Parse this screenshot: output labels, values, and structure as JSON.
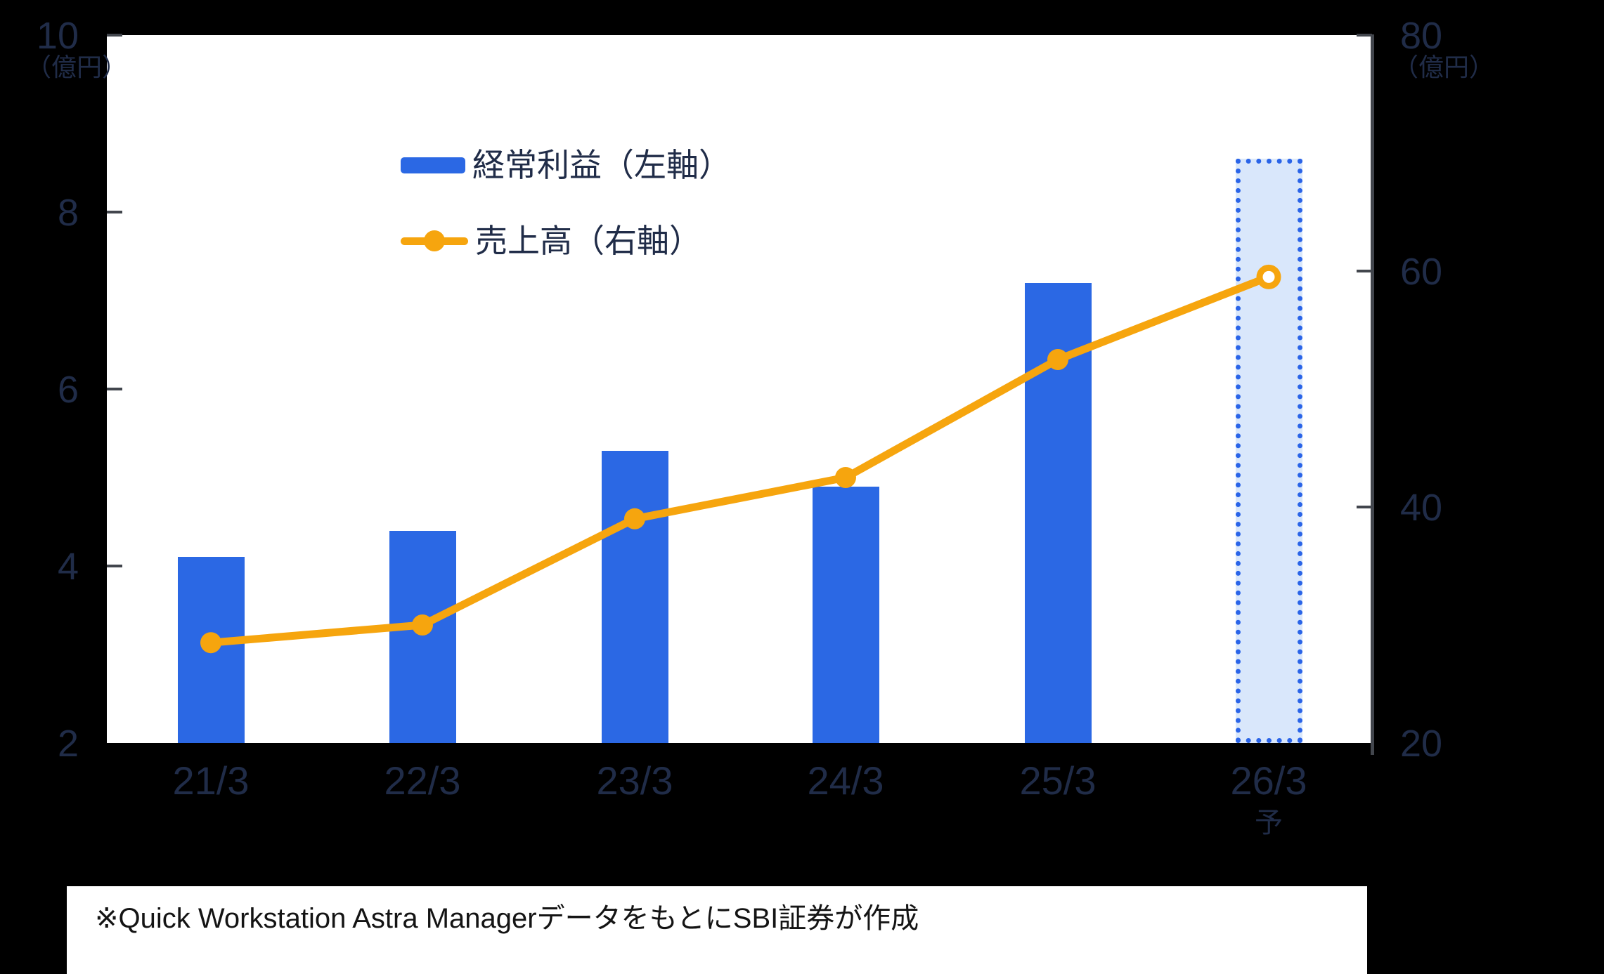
{
  "colors": {
    "page_background": "#000000",
    "plot_background": "#ffffff",
    "bar_blue": "#2b68e4",
    "forecast_fill": "#d9e7fb",
    "forecast_border": "#2a64e8",
    "line_orange": "#f6a50e",
    "axis_text": "#202c48",
    "spine": "#42464d",
    "note_text": "#141414"
  },
  "chart_data": {
    "type": "combo-bar-line-dual-axis",
    "categories": [
      "21/3",
      "22/3",
      "23/3",
      "24/3",
      "25/3",
      "26/3"
    ],
    "forecast_index": 5,
    "forecast_label": "予",
    "series": [
      {
        "name": "経常利益（左軸）",
        "type": "bar",
        "axis": "left",
        "values": [
          4.1,
          4.4,
          5.3,
          4.9,
          7.2,
          8.6
        ],
        "color": "#2b68e4",
        "forecast_style": "dotted-outline-light-fill"
      },
      {
        "name": "売上高（右軸）",
        "type": "line",
        "axis": "right",
        "values": [
          28.5,
          30,
          39,
          42.5,
          52.5,
          59.5
        ],
        "color": "#f6a50e",
        "forecast_marker": "open-circle"
      }
    ],
    "left_axis": {
      "unit": "（億円）",
      "min": 2,
      "max": 10,
      "ticks": [
        10,
        8,
        6,
        4,
        2
      ]
    },
    "right_axis": {
      "unit": "（億円）",
      "min": 20,
      "max": 80,
      "ticks": [
        80,
        60,
        40,
        20
      ]
    },
    "legend_position": "top-left-inside",
    "grid": false
  },
  "footnote": {
    "text": "※Quick Workstation Astra ManagerデータをもとにSBI証券が作成"
  }
}
